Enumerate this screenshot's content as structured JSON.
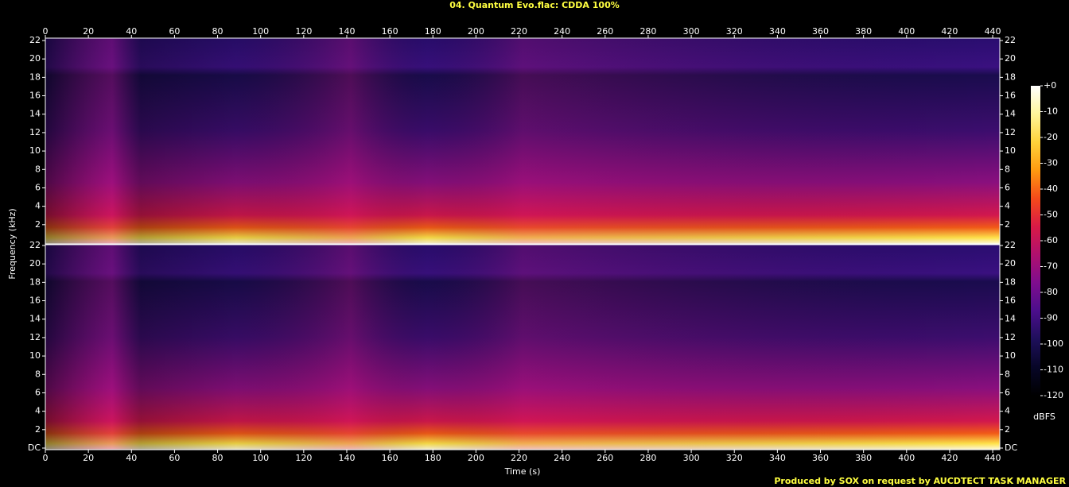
{
  "chart_data": {
    "type": "spectrogram",
    "title": "04. Quantum Evo.flac: CDDA 100%",
    "xlabel": "Time (s)",
    "ylabel": "Frequency (kHz)",
    "footer": "Produced by SOX on request by AUCDTECT TASK MANAGER",
    "xlim": [
      0,
      443.3
    ],
    "xticks": [
      0,
      20,
      40,
      60,
      80,
      100,
      120,
      140,
      160,
      180,
      200,
      220,
      240,
      260,
      280,
      300,
      320,
      340,
      360,
      380,
      400,
      420,
      440
    ],
    "panels": [
      {
        "ylim": [
          0,
          22
        ],
        "yticks": [
          2,
          4,
          6,
          8,
          10,
          12,
          14,
          16,
          18,
          20,
          22
        ]
      },
      {
        "ylim": [
          0,
          22
        ],
        "yticks": [
          {
            "value": 0,
            "label": "DC"
          },
          2,
          4,
          6,
          8,
          10,
          12,
          14,
          16,
          18,
          20,
          22
        ]
      }
    ],
    "colorbar": {
      "label": "dBFS",
      "lim": [
        -120,
        0
      ],
      "ticks": [
        {
          "value": 0,
          "label": "+0"
        },
        -10,
        -20,
        -30,
        -40,
        -50,
        -60,
        -70,
        -80,
        -90,
        -100,
        -110,
        -120
      ],
      "colormap": [
        "#ffffff",
        "#fff59a",
        "#ffd23a",
        "#ff9a10",
        "#f54a1a",
        "#d91a46",
        "#b0106e",
        "#7e0d8e",
        "#4b0e8c",
        "#1e0f5a",
        "#070627",
        "#000000"
      ]
    }
  }
}
